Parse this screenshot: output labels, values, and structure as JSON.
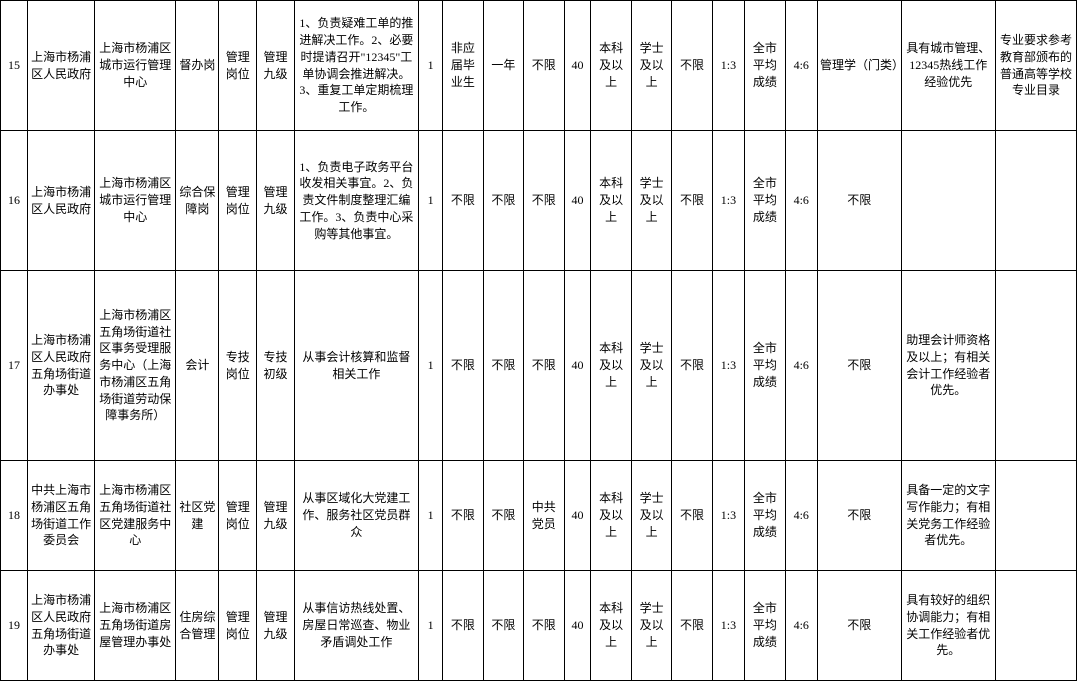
{
  "rows": [
    {
      "idx": "15",
      "org": "上海市杨浦区人民政府",
      "unit": "上海市杨浦区城市运行管理中心",
      "post": "督办岗",
      "type": "管理岗位",
      "level": "管理九级",
      "desc": "1、负责疑难工单的推进解决工作。2、必要时提请召开\"12345\"工单协调会推进解决。3、重复工单定期梳理工作。",
      "num": "1",
      "grad": "非应届毕业生",
      "exp": "一年",
      "pol": "不限",
      "age": "40",
      "edu": "本科及以上",
      "deg": "学士及以上",
      "hk": "不限",
      "ratio": "1:3",
      "score": "全市平均成绩",
      "weight": "4:6",
      "major": "管理学（门类）",
      "other": "具有城市管理、12345热线工作经验优先",
      "note": "专业要求参考教育部颁布的普通高等学校专业目录"
    },
    {
      "idx": "16",
      "org": "上海市杨浦区人民政府",
      "unit": "上海市杨浦区城市运行管理中心",
      "post": "综合保障岗",
      "type": "管理岗位",
      "level": "管理九级",
      "desc": "1、负责电子政务平台收发相关事宜。2、负责文件制度整理汇编工作。3、负责中心采购等其他事宜。",
      "num": "1",
      "grad": "不限",
      "exp": "不限",
      "pol": "不限",
      "age": "40",
      "edu": "本科及以上",
      "deg": "学士及以上",
      "hk": "不限",
      "ratio": "1:3",
      "score": "全市平均成绩",
      "weight": "4:6",
      "major": "不限",
      "other": "",
      "note": ""
    },
    {
      "idx": "17",
      "org": "上海市杨浦区人民政府五角场街道办事处",
      "unit": "上海市杨浦区五角场街道社区事务受理服务中心（上海市杨浦区五角场街道劳动保障事务所）",
      "post": "会计",
      "type": "专技岗位",
      "level": "专技初级",
      "desc": "从事会计核算和监督相关工作",
      "num": "1",
      "grad": "不限",
      "exp": "不限",
      "pol": "不限",
      "age": "40",
      "edu": "本科及以上",
      "deg": "学士及以上",
      "hk": "不限",
      "ratio": "1:3",
      "score": "全市平均成绩",
      "weight": "4:6",
      "major": "不限",
      "other": "助理会计师资格及以上；有相关会计工作经验者优先。",
      "note": ""
    },
    {
      "idx": "18",
      "org": "中共上海市杨浦区五角场街道工作委员会",
      "unit": "上海市杨浦区五角场街道社区党建服务中心",
      "post": "社区党建",
      "type": "管理岗位",
      "level": "管理九级",
      "desc": "从事区域化大党建工作、服务社区党员群众",
      "num": "1",
      "grad": "不限",
      "exp": "不限",
      "pol": "中共党员",
      "age": "40",
      "edu": "本科及以上",
      "deg": "学士及以上",
      "hk": "不限",
      "ratio": "1:3",
      "score": "全市平均成绩",
      "weight": "4:6",
      "major": "不限",
      "other": "具备一定的文字写作能力；有相关党务工作经验者优先。",
      "note": ""
    },
    {
      "idx": "19",
      "org": "上海市杨浦区人民政府五角场街道办事处",
      "unit": "上海市杨浦区五角场街道房屋管理办事处",
      "post": "住房综合管理",
      "type": "管理岗位",
      "level": "管理九级",
      "desc": "从事信访热线处置、房屋日常巡查、物业矛盾调处工作",
      "num": "1",
      "grad": "不限",
      "exp": "不限",
      "pol": "不限",
      "age": "40",
      "edu": "本科及以上",
      "deg": "学士及以上",
      "hk": "不限",
      "ratio": "1:3",
      "score": "全市平均成绩",
      "weight": "4:6",
      "major": "不限",
      "other": "具有较好的组织协调能力；有相关工作经验者优先。",
      "note": ""
    }
  ],
  "row_heights": [
    "130px",
    "140px",
    "190px",
    "110px",
    "110px"
  ]
}
